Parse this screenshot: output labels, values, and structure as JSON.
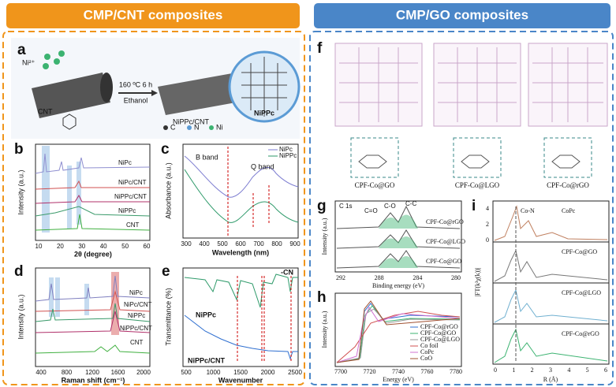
{
  "headers": {
    "left": "CMP/CNT composites",
    "right": "CMP/GO composites"
  },
  "panels": {
    "a": {
      "letter": "a",
      "ion": "Ni²⁺",
      "condition": "160 ºC 6 h",
      "solvent": "Ethanol",
      "support": "CNT",
      "product": "NiPPc/CNT",
      "polymer": "NiPPc",
      "legend": [
        "C",
        "N",
        "Ni"
      ]
    },
    "b": {
      "letter": "b",
      "ylabel": "Intensity (a.u.)",
      "xlabel": "2θ (degree)",
      "xticks": [
        "10",
        "20",
        "30",
        "40",
        "50",
        "60"
      ],
      "traces": [
        "NiPc",
        "NiPc/CNT",
        "NiPPc/CNT",
        "NiPPc",
        "CNT"
      ]
    },
    "c": {
      "letter": "c",
      "ylabel": "Absorbance (a.u.)",
      "xlabel": "Wavelength (nm)",
      "xticks": [
        "300",
        "400",
        "500",
        "600",
        "700",
        "800",
        "900"
      ],
      "legend": [
        "NiPc",
        "NiPPc"
      ],
      "annotations": [
        "B band",
        "Q band"
      ]
    },
    "d": {
      "letter": "d",
      "ylabel": "Intensity (a.u.)",
      "xlabel": "Raman shift (cm⁻¹)",
      "xticks": [
        "400",
        "800",
        "1200",
        "1600",
        "2000"
      ],
      "traces": [
        "NiPc",
        "NiPc/CNT",
        "NiPPc",
        "NiPPc/CNT",
        "CNT"
      ]
    },
    "e": {
      "letter": "e",
      "ylabel": "Transmittance (%)",
      "xlabel": "Wavenumber",
      "xticks": [
        "500",
        "1000",
        "1500",
        "2000",
        "2500"
      ],
      "traces": [
        "NiPPc",
        "NiPPc/CNT"
      ],
      "annotation": "-CN"
    },
    "f": {
      "letter": "f",
      "samples": [
        "CPF-Co@GO",
        "CPF-Co@LGO",
        "CPF-Co@rGO"
      ]
    },
    "g": {
      "letter": "g",
      "ylabel": "Intensity (a.u.)",
      "xlabel": "Binding energy (eV)",
      "xticks": [
        "292",
        "288",
        "284",
        "280"
      ],
      "title": "C 1s",
      "peaks": [
        "C=O",
        "C-O",
        "C-C"
      ],
      "traces": [
        "CPF-Co@rGO",
        "CPF-Co@LGO",
        "CPF-Co@GO"
      ]
    },
    "h": {
      "letter": "h",
      "ylabel": "Intensity (a.u.)",
      "xlabel": "Energy (eV)",
      "xticks": [
        "7700",
        "7720",
        "7740",
        "7760",
        "7780"
      ],
      "legend": [
        "CPF-Co@rGO",
        "CPF-Co@GO",
        "CPF-Co@LGO",
        "Co foil",
        "CoPc",
        "CoO"
      ]
    },
    "i": {
      "letter": "i",
      "ylabel": "|FT(k³χ(k))|",
      "xlabel": "R (Å)",
      "xticks": [
        "0",
        "1",
        "2",
        "3",
        "4",
        "5",
        "6"
      ],
      "yticks": [
        "0",
        "2",
        "4"
      ],
      "annotation": "Co-N",
      "traces": [
        "CoPc",
        "CPF-Co@GO",
        "CPF-Co@LGO",
        "CPF-Co@rGO"
      ]
    }
  }
}
